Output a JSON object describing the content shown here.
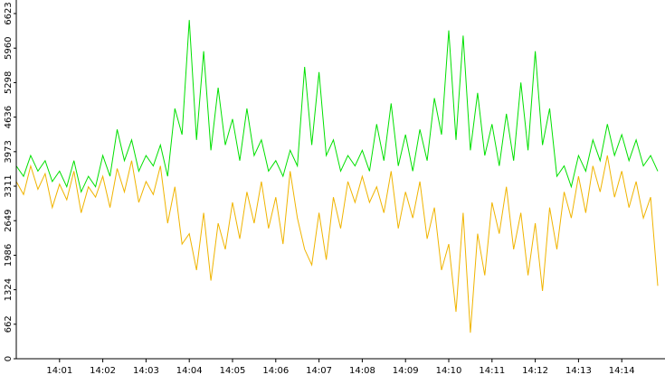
{
  "chart_data": {
    "type": "line",
    "x": [
      0,
      10,
      20,
      30,
      40,
      50,
      60,
      70,
      80,
      90,
      100,
      110,
      120,
      130,
      140,
      150,
      160,
      170,
      180,
      190,
      200,
      210,
      220,
      230,
      240,
      250,
      260,
      270,
      280,
      290,
      300,
      310,
      320,
      330,
      340,
      350,
      360,
      370,
      380,
      390,
      400,
      410,
      420,
      430,
      440,
      450,
      460,
      470,
      480,
      490,
      500,
      510,
      520,
      530,
      540,
      550,
      560,
      570,
      580,
      590,
      600,
      610,
      620,
      630,
      640,
      650,
      660,
      670,
      680,
      690,
      700,
      710,
      720,
      730,
      740,
      750,
      760,
      770,
      780,
      790,
      800,
      810,
      820,
      830,
      840,
      850,
      860,
      870,
      880,
      890
    ],
    "series": [
      {
        "color": "#00e000",
        "values": [
          3700,
          3500,
          3900,
          3600,
          3800,
          3400,
          3600,
          3300,
          3800,
          3200,
          3500,
          3300,
          3900,
          3500,
          4400,
          3800,
          4200,
          3600,
          3900,
          3700,
          4100,
          3500,
          4800,
          4300,
          6500,
          4200,
          5900,
          4000,
          5200,
          4100,
          4600,
          3800,
          4800,
          3900,
          4200,
          3600,
          3800,
          3500,
          4000,
          3700,
          5600,
          4100,
          5500,
          3900,
          4200,
          3600,
          3900,
          3700,
          4000,
          3600,
          4500,
          3800,
          4900,
          3700,
          4300,
          3600,
          4400,
          3800,
          5000,
          4300,
          6300,
          4200,
          6200,
          4000,
          5100,
          3900,
          4500,
          3700,
          4700,
          3800,
          5300,
          4000,
          5900,
          4100,
          4800,
          3500,
          3700,
          3300,
          3900,
          3600,
          4200,
          3800,
          4500,
          3900,
          4300,
          3800,
          4200,
          3700,
          3900,
          3600
        ]
      },
      {
        "color": "#f0b400",
        "values": [
          3400,
          3150,
          3700,
          3250,
          3550,
          2900,
          3350,
          3050,
          3600,
          2800,
          3300,
          3100,
          3500,
          2900,
          3650,
          3200,
          3800,
          3000,
          3400,
          3150,
          3700,
          2600,
          3300,
          2200,
          2400,
          1700,
          2800,
          1500,
          2600,
          2100,
          3000,
          2300,
          3200,
          2600,
          3400,
          2500,
          3100,
          2200,
          3600,
          2700,
          2100,
          1800,
          2800,
          1900,
          3100,
          2500,
          3400,
          3000,
          3500,
          3000,
          3300,
          2800,
          3600,
          2500,
          3200,
          2700,
          3400,
          2300,
          2900,
          1700,
          2200,
          900,
          2800,
          500,
          2400,
          1600,
          3000,
          2400,
          3300,
          2100,
          2800,
          1600,
          2600,
          1300,
          2900,
          2100,
          3200,
          2700,
          3500,
          2800,
          3700,
          3200,
          3900,
          3100,
          3600,
          2900,
          3400,
          2700,
          3100,
          1400
        ]
      }
    ],
    "xlim": [
      0,
      900
    ],
    "xticks": [
      {
        "value": 60,
        "label": "14:01"
      },
      {
        "value": 120,
        "label": "14:02"
      },
      {
        "value": 180,
        "label": "14:03"
      },
      {
        "value": 240,
        "label": "14:04"
      },
      {
        "value": 300,
        "label": "14:05"
      },
      {
        "value": 360,
        "label": "14:06"
      },
      {
        "value": 420,
        "label": "14:07"
      },
      {
        "value": 480,
        "label": "14:08"
      },
      {
        "value": 540,
        "label": "14:09"
      },
      {
        "value": 600,
        "label": "14:10"
      },
      {
        "value": 660,
        "label": "14:11"
      },
      {
        "value": 720,
        "label": "14:12"
      },
      {
        "value": 780,
        "label": "14:13"
      },
      {
        "value": 840,
        "label": "14:14"
      }
    ],
    "ylim": [
      0,
      6623
    ],
    "yticks": [
      0,
      662,
      1324,
      1986,
      2649,
      3311,
      3973,
      4636,
      5298,
      5960,
      6623
    ]
  }
}
